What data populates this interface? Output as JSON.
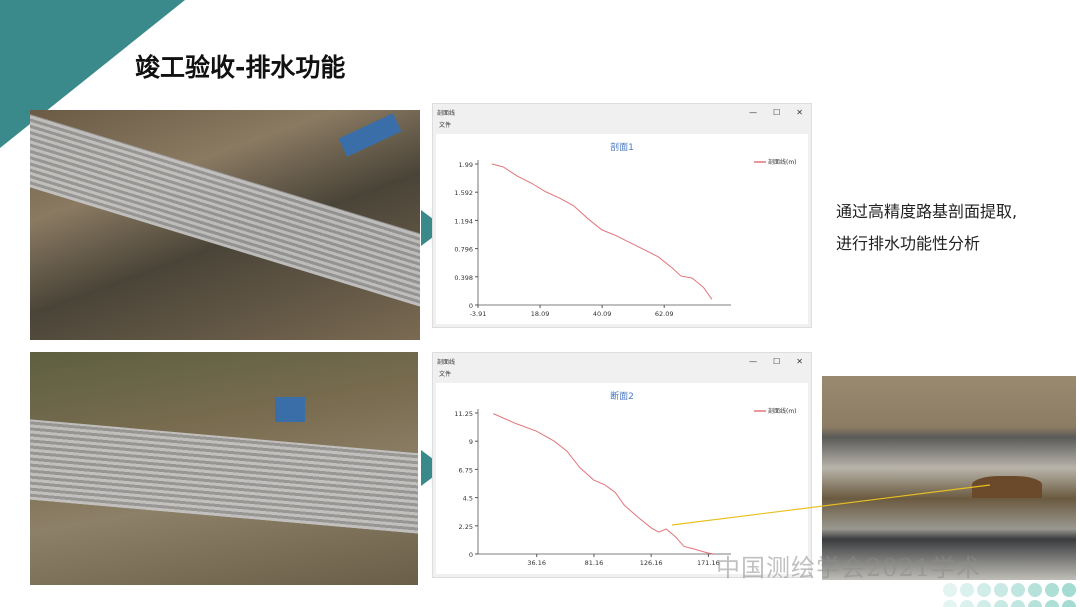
{
  "slide": {
    "title": "竣工验收-排水功能",
    "note_lines": [
      "通过高精度路基剖面提取,",
      "进行排水功能性分析"
    ],
    "watermark": "中国测绘学会2021学术",
    "accent": "#3a8a8c"
  },
  "windows": [
    {
      "title": "剖面线",
      "menu": "文件",
      "controls": [
        "—",
        "☐",
        "✕"
      ]
    },
    {
      "title": "剖面线",
      "menu": "文件",
      "controls": [
        "—",
        "☐",
        "✕"
      ]
    }
  ],
  "chart_data": [
    {
      "type": "line",
      "title": "剖面1",
      "legend": "剖面线(m)",
      "legend_position": "top-right",
      "line_color": "#d9535a",
      "xlim": [
        -3.91,
        84
      ],
      "ylim": [
        0,
        1.99
      ],
      "xticks": [
        "-3.91",
        "18.09",
        "40.09",
        "62.09"
      ],
      "yticks": [
        "0",
        "0.398",
        "0.796",
        "1.194",
        "1.592",
        "1.99"
      ],
      "x": [
        1,
        5,
        10,
        15,
        20,
        25,
        30,
        35,
        40,
        45,
        50,
        55,
        60,
        65,
        68,
        72,
        76,
        79
      ],
      "y": [
        1.99,
        1.95,
        1.82,
        1.72,
        1.6,
        1.51,
        1.4,
        1.22,
        1.06,
        0.98,
        0.88,
        0.78,
        0.68,
        0.52,
        0.41,
        0.38,
        0.25,
        0.08
      ]
    },
    {
      "type": "line",
      "title": "断面2",
      "legend": "剖面线(m)",
      "legend_position": "top-right",
      "line_color": "#d9535a",
      "xlim": [
        -10,
        185
      ],
      "ylim": [
        0,
        11.25
      ],
      "xticks": [
        "36.16",
        "81.16",
        "126.16",
        "171.16"
      ],
      "yticks": [
        "0",
        "2.25",
        "4.5",
        "6.75",
        "9",
        "11.25"
      ],
      "x": [
        2,
        20,
        36,
        50,
        60,
        70,
        81,
        90,
        98,
        105,
        115,
        126,
        132,
        138,
        145,
        152,
        160,
        170,
        175
      ],
      "y": [
        11.2,
        10.4,
        9.8,
        9.0,
        8.2,
        6.9,
        5.9,
        5.5,
        4.9,
        3.9,
        3.0,
        2.1,
        1.75,
        2.0,
        1.4,
        0.6,
        0.4,
        0.1,
        0
      ]
    }
  ]
}
